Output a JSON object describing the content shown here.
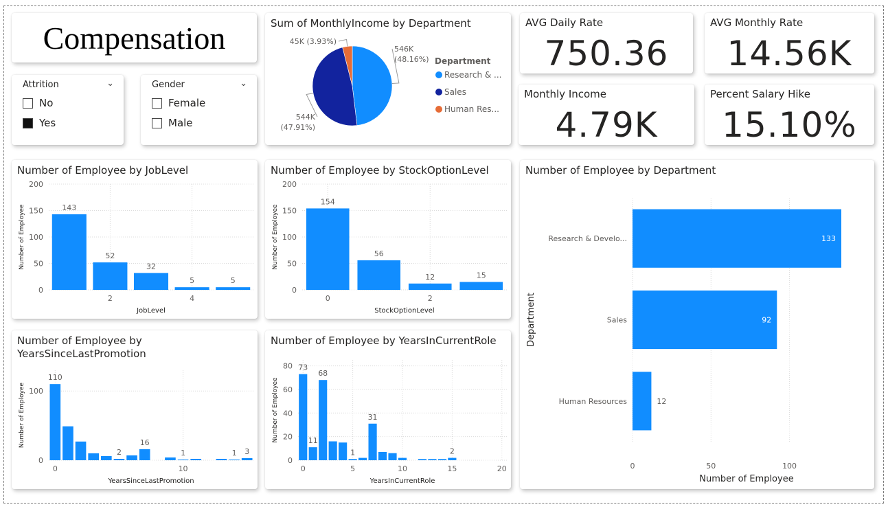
{
  "page_title": "Compensation",
  "slicers": [
    {
      "title": "Attrition",
      "options": [
        {
          "label": "No",
          "checked": false
        },
        {
          "label": "Yes",
          "checked": true
        }
      ]
    },
    {
      "title": "Gender",
      "options": [
        {
          "label": "Female",
          "checked": false
        },
        {
          "label": "Male",
          "checked": false
        }
      ]
    }
  ],
  "kpis": {
    "avg_daily_rate": {
      "title": "AVG Daily Rate",
      "value": "750.36"
    },
    "avg_monthly_rate": {
      "title": "AVG Monthly Rate",
      "value": "14.56K"
    },
    "monthly_income": {
      "title": "Monthly Income",
      "value": "4.79K"
    },
    "percent_salary_hike": {
      "title": "Percent Salary Hike",
      "value": "15.10%"
    }
  },
  "colors": {
    "primary": "#118DFF",
    "navy": "#12239E",
    "orange": "#E66C37",
    "grid": "#dcdcdc",
    "axis_text": "#605E5C"
  },
  "chart_data": [
    {
      "id": "pie",
      "type": "pie",
      "title": "Sum of MonthlyIncome by Department",
      "legend_title": "Department",
      "legend_position": "right",
      "slices": [
        {
          "name": "Research & ...",
          "value": 546,
          "pct": "48.16%",
          "label": "546K",
          "color": "#118DFF"
        },
        {
          "name": "Sales",
          "value": 544,
          "pct": "47.91%",
          "label": "544K",
          "color": "#12239E"
        },
        {
          "name": "Human Res...",
          "value": 45,
          "pct": "3.93%",
          "label": "45K",
          "color": "#E66C37"
        }
      ]
    },
    {
      "id": "joblevel",
      "type": "bar",
      "title": "Number of Employee by JobLevel",
      "xlabel": "JobLevel",
      "ylabel": "Number of Employee",
      "x": [
        1,
        2,
        3,
        4,
        5
      ],
      "values": [
        143,
        52,
        32,
        5,
        5
      ],
      "labels": [
        "143",
        "52",
        "32",
        "5",
        "5"
      ],
      "xticks": [
        "2",
        "4"
      ],
      "xtick_values": [
        2,
        4
      ],
      "yticks": [
        "0",
        "50",
        "100",
        "150",
        "200"
      ],
      "ylim": [
        0,
        200
      ],
      "xlim": [
        0.5,
        5.5
      ]
    },
    {
      "id": "stock",
      "type": "bar",
      "title": "Number of Employee by StockOptionLevel",
      "xlabel": "StockOptionLevel",
      "ylabel": "Number of Employee",
      "x": [
        0,
        1,
        2,
        3
      ],
      "values": [
        154,
        56,
        12,
        15
      ],
      "labels": [
        "154",
        "56",
        "12",
        "15"
      ],
      "xticks": [
        "0",
        "2"
      ],
      "xtick_values": [
        0,
        2
      ],
      "yticks": [
        "0",
        "50",
        "100",
        "150",
        "200"
      ],
      "ylim": [
        0,
        200
      ],
      "xlim": [
        -0.5,
        3.5
      ]
    },
    {
      "id": "promo",
      "type": "bar",
      "title": "Number of Employee by YearsSinceLastPromotion",
      "title_lines": [
        "Number of Employee by",
        "YearsSinceLastPromotion"
      ],
      "xlabel": "YearsSinceLastPromotion",
      "ylabel": "Number of Employee",
      "x": [
        0,
        1,
        2,
        3,
        4,
        5,
        6,
        7,
        9,
        10,
        11,
        13,
        14,
        15
      ],
      "values": [
        110,
        49,
        27,
        10,
        6,
        2,
        7,
        16,
        4,
        1,
        2,
        2,
        1,
        3
      ],
      "labels": [
        "110",
        "",
        "",
        "",
        "",
        "2",
        "",
        "16",
        "",
        "1",
        "",
        "",
        "1",
        "3"
      ],
      "xticks": [
        "0",
        "10"
      ],
      "xtick_values": [
        0,
        10
      ],
      "yticks": [
        "0",
        "100"
      ],
      "ylim": [
        0,
        130
      ],
      "xlim": [
        -0.5,
        15.5
      ]
    },
    {
      "id": "role",
      "type": "bar",
      "title": "Number of Employee by YearsInCurrentRole",
      "xlabel": "YearsInCurrentRole",
      "ylabel": "Number of Employee",
      "x": [
        0,
        1,
        2,
        3,
        4,
        5,
        6,
        7,
        8,
        9,
        10,
        11,
        12,
        13,
        14,
        15
      ],
      "values": [
        73,
        11,
        68,
        16,
        15,
        1,
        2,
        31,
        7,
        6,
        2,
        0,
        1,
        1,
        1,
        2
      ],
      "labels": [
        "73",
        "11",
        "68",
        "",
        "",
        "1",
        "",
        "31",
        "",
        "",
        "",
        "",
        "",
        "",
        "",
        "2"
      ],
      "xticks": [
        "0",
        "5",
        "10",
        "15",
        "20"
      ],
      "xtick_values": [
        0,
        5,
        10,
        15,
        20
      ],
      "yticks": [
        "0",
        "20",
        "40",
        "60",
        "80"
      ],
      "ylim": [
        0,
        85
      ],
      "xlim": [
        -0.5,
        20.5
      ]
    },
    {
      "id": "dept",
      "type": "bar",
      "orientation": "horizontal",
      "title": "Number of Employee by Department",
      "xlabel": "Number of Employee",
      "ylabel": "Department",
      "categories": [
        "Research & Develo...",
        "Sales",
        "Human Resources"
      ],
      "values": [
        133,
        92,
        12
      ],
      "labels": [
        "133",
        "92",
        "12"
      ],
      "xticks": [
        "0",
        "50",
        "100"
      ],
      "xtick_values": [
        0,
        50,
        100
      ],
      "xlim": [
        0,
        140
      ]
    }
  ]
}
